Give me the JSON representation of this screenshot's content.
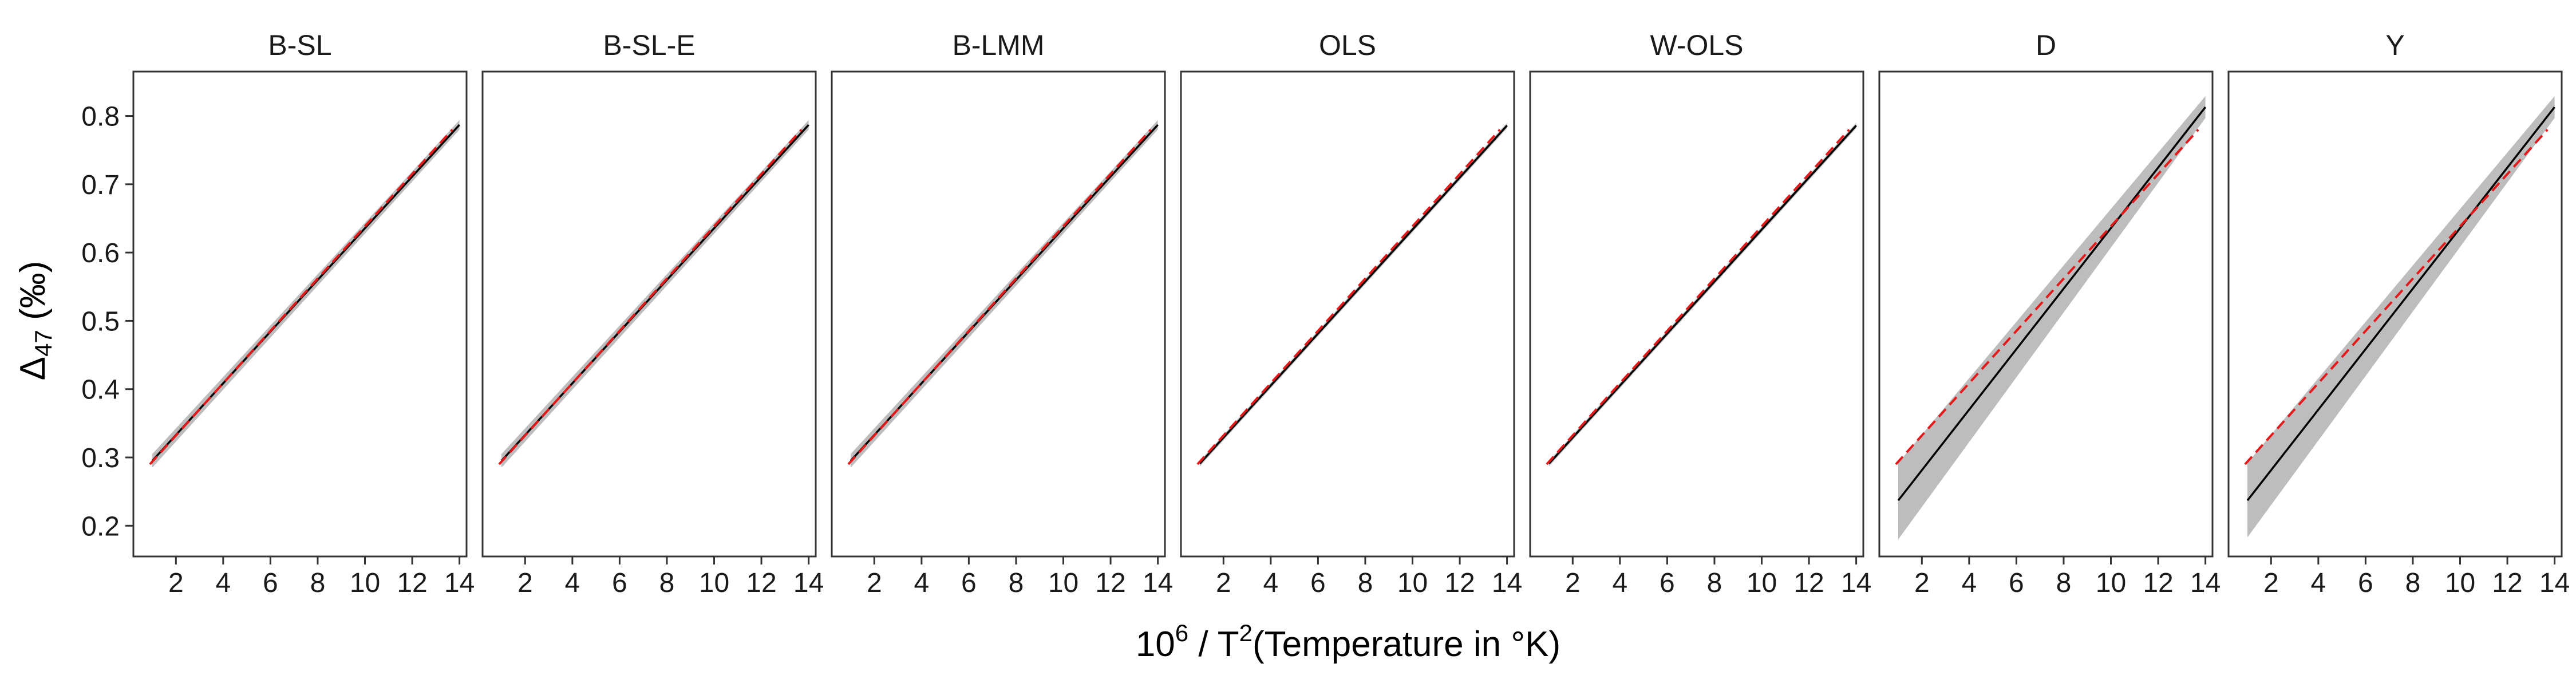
{
  "chart_data": {
    "type": "line",
    "xlabel": "10^6 / T^2(Temperature in °K)",
    "ylabel": "Δ47 (‰)",
    "xlim": [
      0.2,
      14.3
    ],
    "ylim": [
      0.155,
      0.865
    ],
    "x_ticks": [
      2,
      4,
      6,
      8,
      10,
      12,
      14
    ],
    "y_ticks": [
      0.2,
      0.3,
      0.4,
      0.5,
      0.6,
      0.7,
      0.8
    ],
    "grid": false,
    "colors": {
      "fit": "#000000",
      "reference": "#e31a1c",
      "band": "#bdbdbd"
    },
    "reference_line": {
      "x": [
        0.9,
        13.7
      ],
      "y": [
        0.29,
        0.78
      ],
      "style": "dashed"
    },
    "panels": [
      {
        "title": "B-SL",
        "fit": {
          "x": [
            1.0,
            14.0
          ],
          "y": [
            0.295,
            0.787
          ]
        },
        "band": {
          "lower": [
            0.285,
            0.78
          ],
          "upper": [
            0.305,
            0.794
          ]
        }
      },
      {
        "title": "B-SL-E",
        "fit": {
          "x": [
            1.0,
            14.0
          ],
          "y": [
            0.295,
            0.787
          ]
        },
        "band": {
          "lower": [
            0.285,
            0.78
          ],
          "upper": [
            0.305,
            0.794
          ]
        }
      },
      {
        "title": "B-LMM",
        "fit": {
          "x": [
            1.0,
            14.0
          ],
          "y": [
            0.295,
            0.787
          ]
        },
        "band": {
          "lower": [
            0.285,
            0.78
          ],
          "upper": [
            0.305,
            0.794
          ]
        }
      },
      {
        "title": "OLS",
        "fit": {
          "x": [
            1.0,
            14.0
          ],
          "y": [
            0.291,
            0.786
          ]
        },
        "band": {
          "lower": [
            0.287,
            0.782
          ],
          "upper": [
            0.295,
            0.79
          ]
        }
      },
      {
        "title": "W-OLS",
        "fit": {
          "x": [
            1.0,
            14.0
          ],
          "y": [
            0.291,
            0.786
          ]
        },
        "band": {
          "lower": [
            0.287,
            0.782
          ],
          "upper": [
            0.295,
            0.79
          ]
        }
      },
      {
        "title": "D",
        "fit": {
          "x": [
            1.0,
            14.0
          ],
          "y": [
            0.237,
            0.813
          ]
        },
        "band": {
          "lower": [
            0.18,
            0.797
          ],
          "upper": [
            0.292,
            0.829
          ]
        }
      },
      {
        "title": "Y",
        "fit": {
          "x": [
            1.0,
            14.0
          ],
          "y": [
            0.237,
            0.813
          ]
        },
        "band": {
          "lower": [
            0.183,
            0.797
          ],
          "upper": [
            0.292,
            0.829
          ]
        }
      }
    ]
  }
}
